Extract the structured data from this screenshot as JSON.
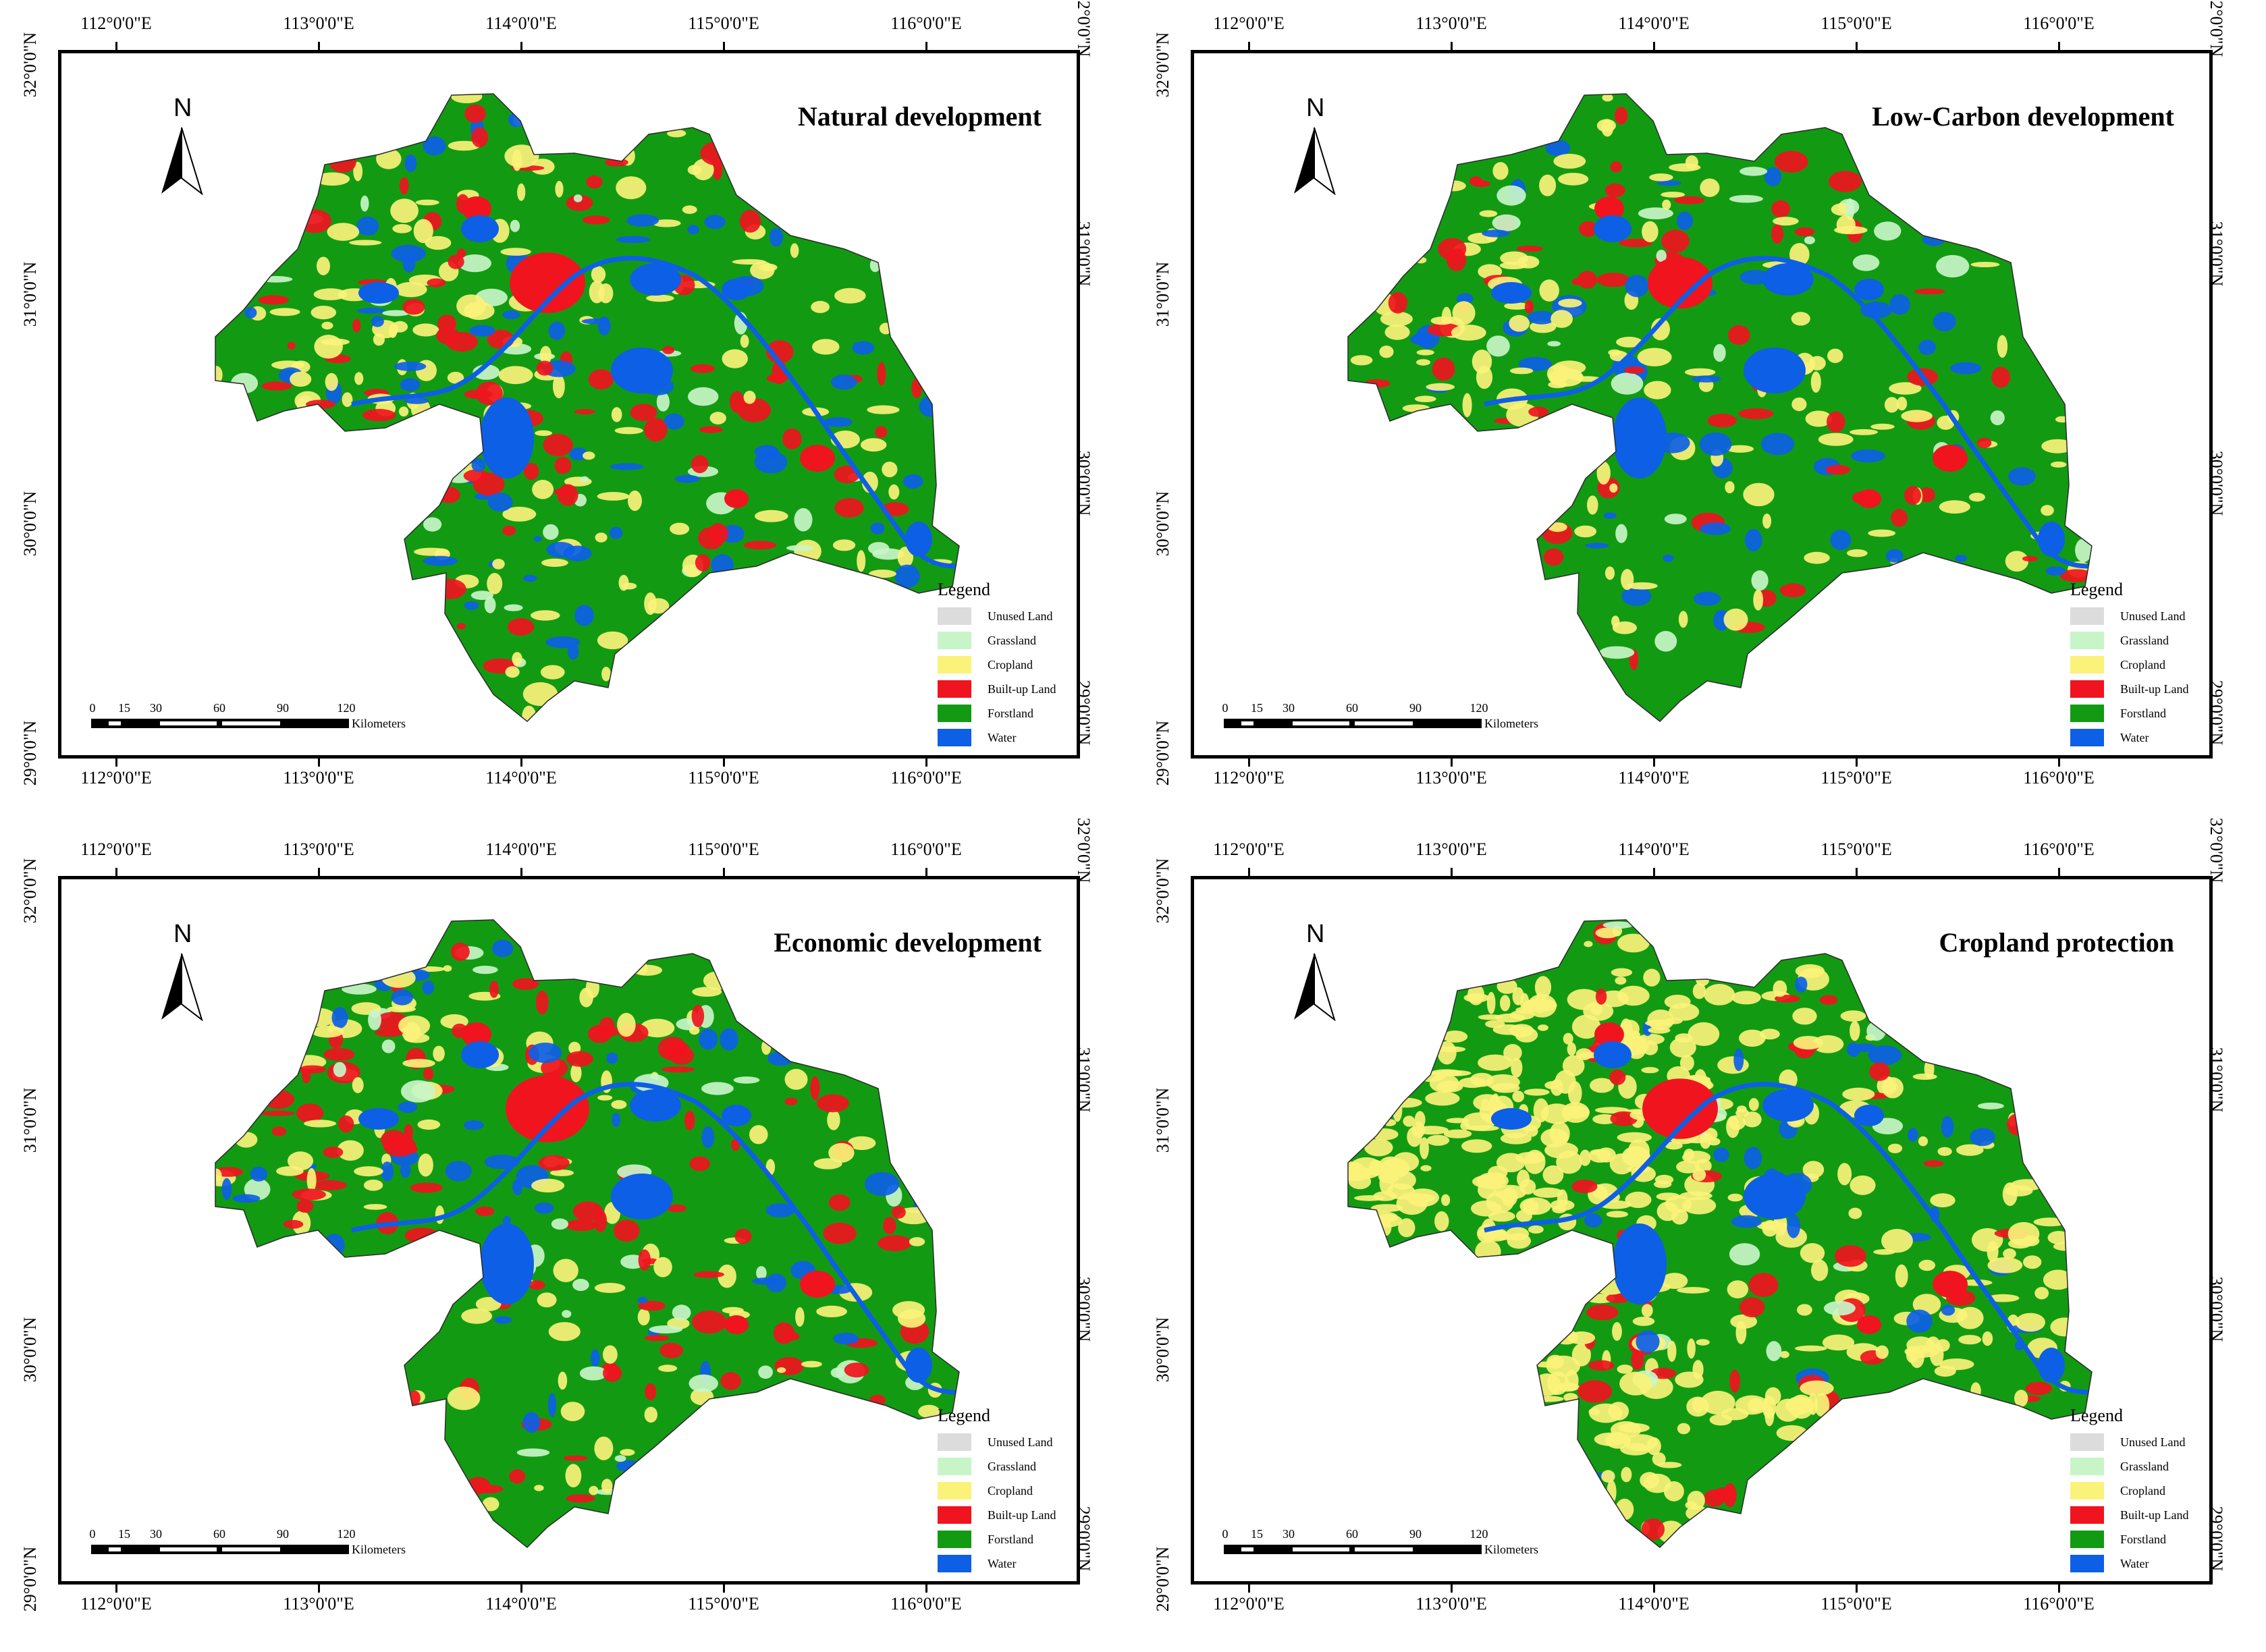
{
  "axes": {
    "longitude_labels": [
      "112°0'0\"E",
      "113°0'0\"E",
      "114°0'0\"E",
      "115°0'0\"E",
      "116°0'0\"E"
    ],
    "latitude_labels": [
      "32°0'0\"N",
      "31°0'0\"N",
      "30°0'0\"N",
      "29°0'0\"N"
    ]
  },
  "legend": {
    "title": "Legend",
    "items": [
      {
        "label": "Unused Land",
        "color": "#dcdcdc"
      },
      {
        "label": "Grassland",
        "color": "#c8f5c8"
      },
      {
        "label": "Cropland",
        "color": "#fbf27a"
      },
      {
        "label": "Built-up Land",
        "color": "#f0141e"
      },
      {
        "label": "Forstland",
        "color": "#139a13"
      },
      {
        "label": "Water",
        "color": "#0d5fe6"
      }
    ]
  },
  "scale_bar": {
    "ticks": [
      "0",
      "15",
      "30",
      "60",
      "90",
      "120"
    ],
    "tick_values_km": [
      0,
      15,
      30,
      60,
      90,
      120
    ],
    "unit": "Kilometers"
  },
  "north_arrow": {
    "label": "N",
    "icon": "north-arrow-icon"
  },
  "panels": [
    {
      "title": "Natural development",
      "scenario": "natural",
      "land_mix": {
        "forest": 0.55,
        "cropland": 0.14,
        "built": 0.16,
        "water": 0.11,
        "grass": 0.04
      }
    },
    {
      "title": "Low-Carbon development",
      "scenario": "lowcarbon",
      "land_mix": {
        "forest": 0.58,
        "cropland": 0.15,
        "built": 0.12,
        "water": 0.11,
        "grass": 0.04
      }
    },
    {
      "title": "Economic development",
      "scenario": "economic",
      "land_mix": {
        "forest": 0.53,
        "cropland": 0.13,
        "built": 0.19,
        "water": 0.11,
        "grass": 0.04
      }
    },
    {
      "title": "Cropland protection",
      "scenario": "cropland",
      "land_mix": {
        "forest": 0.45,
        "cropland": 0.3,
        "built": 0.11,
        "water": 0.1,
        "grass": 0.04
      }
    }
  ]
}
